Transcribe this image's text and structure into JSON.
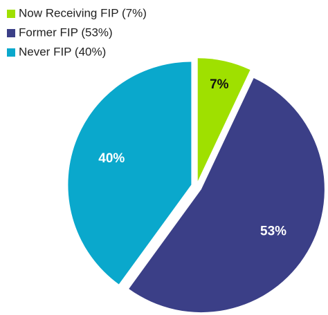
{
  "chart_data": {
    "type": "pie",
    "categories": [
      "Now Receiving FIP (7%)",
      "Former FIP (53%)",
      "Never FIP (40%)"
    ],
    "values": [
      7,
      53,
      40
    ],
    "value_labels": [
      "7%",
      "53%",
      "40%"
    ],
    "colors": [
      "#9fe000",
      "#3b3f87",
      "#0aa8cc"
    ],
    "legend": "top-left"
  }
}
